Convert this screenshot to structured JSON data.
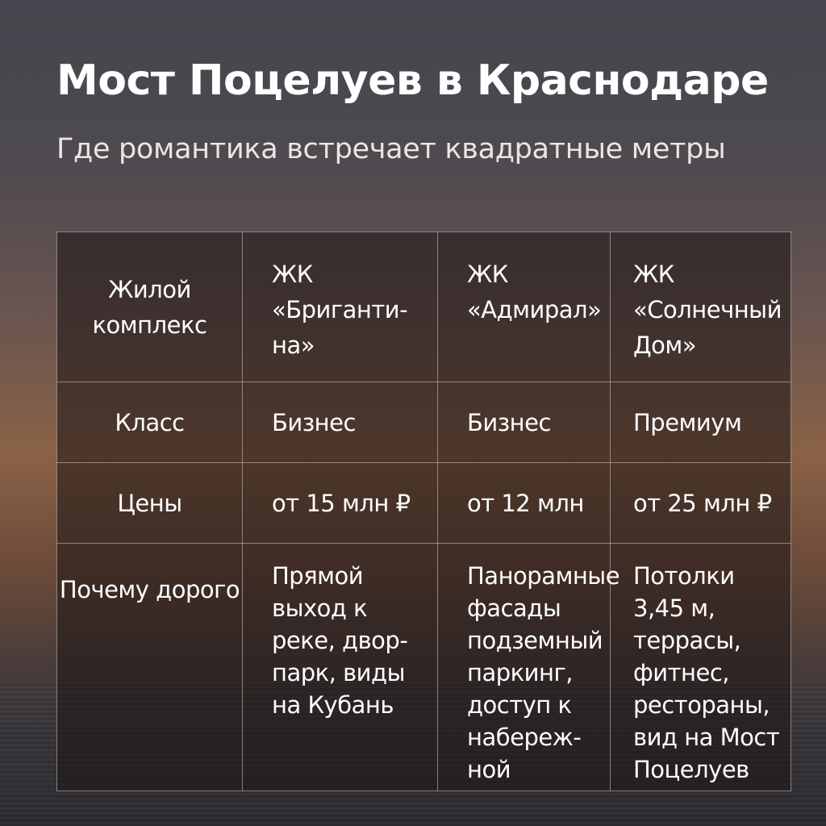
{
  "title": "Мост Поцелуев в Краснодаре",
  "subtitle": "Где романтика встречает квадратные метры",
  "table": {
    "rows": [
      {
        "label": "Жилой комплекс",
        "cells": [
          "ЖК «Бриганти-на»",
          "ЖК «Адмирал»",
          "ЖК «Солнечный Дом»"
        ]
      },
      {
        "label": "Класс",
        "cells": [
          "Бизнес",
          "Бизнес",
          "Премиум"
        ]
      },
      {
        "label": "Цены",
        "cells": [
          "от 15 млн ₽",
          "от 12 млн",
          "от 25 млн ₽"
        ]
      },
      {
        "label": "Почему дорого",
        "cells": [
          "Прямой выход к реке, двор-парк, виды на Кубань",
          "Панорамные фасады подземный паркинг, доступ к набереж-ной",
          "Потолки 3,45 м, террасы, фитнес, рестораны, вид на Мост Поцелуев"
        ]
      }
    ]
  }
}
